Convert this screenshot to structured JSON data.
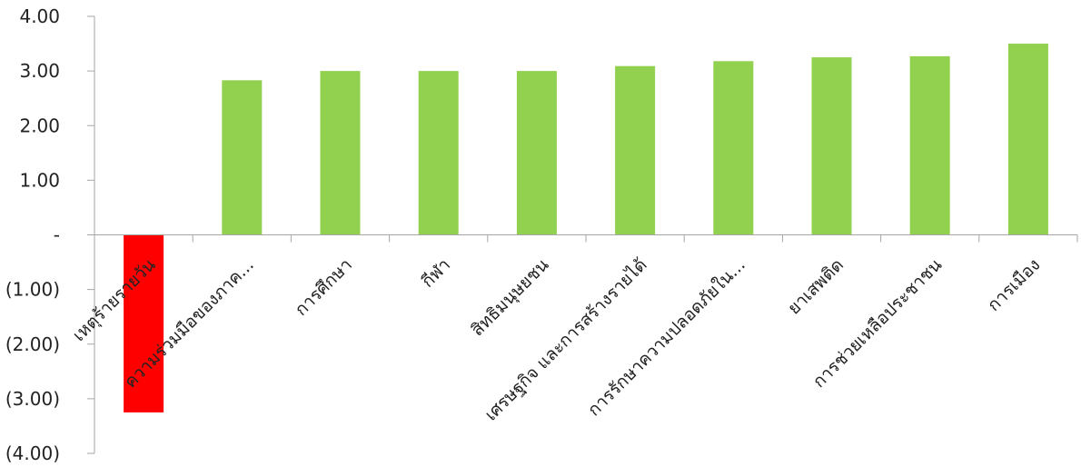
{
  "chart_data": {
    "type": "bar",
    "title": "",
    "xlabel": "",
    "ylabel": "",
    "ylim": [
      -4,
      4
    ],
    "y_ticks": [
      {
        "value": 4,
        "label": "4.00"
      },
      {
        "value": 3,
        "label": "3.00"
      },
      {
        "value": 2,
        "label": "2.00"
      },
      {
        "value": 1,
        "label": "1.00"
      },
      {
        "value": 0,
        "label": "-"
      },
      {
        "value": -1,
        "label": "(1.00)"
      },
      {
        "value": -2,
        "label": "(2.00)"
      },
      {
        "value": -3,
        "label": "(3.00)"
      },
      {
        "value": -4,
        "label": "(4.00)"
      }
    ],
    "categories": [
      "เหตุร้ายรายวัน",
      "ความร่วมมือของภาค...",
      "การศึกษา",
      "กีฬา",
      "สิทธิมนุษยชน",
      "เศรษฐกิจ และการสร้างรายได้",
      "การรักษาความปลอดภัยใน...",
      "ยาเสพติด",
      "การช่วยเหลือประชาชน",
      "การเมือง"
    ],
    "values": [
      -3.25,
      2.83,
      3.0,
      3.0,
      3.0,
      3.09,
      3.18,
      3.25,
      3.27,
      3.5
    ],
    "colors": {
      "positive": "#92d050",
      "negative": "#ff0000",
      "axis": "#a6a6a6"
    },
    "grid": false,
    "legend": "none"
  }
}
